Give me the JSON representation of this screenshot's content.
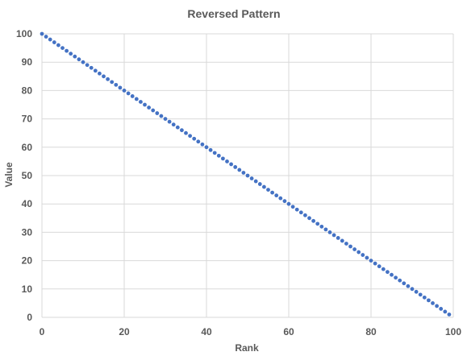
{
  "chart_data": {
    "type": "scatter",
    "title": "Reversed Pattern",
    "xlabel": "Rank",
    "ylabel": "Value",
    "xlim": [
      0,
      100
    ],
    "ylim": [
      0,
      100
    ],
    "x_ticks": [
      0,
      20,
      40,
      60,
      80,
      100
    ],
    "y_ticks": [
      0,
      10,
      20,
      30,
      40,
      50,
      60,
      70,
      80,
      90,
      100
    ],
    "grid": true,
    "legend": "none",
    "series": [
      {
        "color": "#4472C4",
        "x": [
          0,
          1,
          2,
          3,
          4,
          5,
          6,
          7,
          8,
          9,
          10,
          11,
          12,
          13,
          14,
          15,
          16,
          17,
          18,
          19,
          20,
          21,
          22,
          23,
          24,
          25,
          26,
          27,
          28,
          29,
          30,
          31,
          32,
          33,
          34,
          35,
          36,
          37,
          38,
          39,
          40,
          41,
          42,
          43,
          44,
          45,
          46,
          47,
          48,
          49,
          50,
          51,
          52,
          53,
          54,
          55,
          56,
          57,
          58,
          59,
          60,
          61,
          62,
          63,
          64,
          65,
          66,
          67,
          68,
          69,
          70,
          71,
          72,
          73,
          74,
          75,
          76,
          77,
          78,
          79,
          80,
          81,
          82,
          83,
          84,
          85,
          86,
          87,
          88,
          89,
          90,
          91,
          92,
          93,
          94,
          95,
          96,
          97,
          98,
          99
        ],
        "y": [
          100,
          99,
          98,
          97,
          96,
          95,
          94,
          93,
          92,
          91,
          90,
          89,
          88,
          87,
          86,
          85,
          84,
          83,
          82,
          81,
          80,
          79,
          78,
          77,
          76,
          75,
          74,
          73,
          72,
          71,
          70,
          69,
          68,
          67,
          66,
          65,
          64,
          63,
          62,
          61,
          60,
          59,
          58,
          57,
          56,
          55,
          54,
          53,
          52,
          51,
          50,
          49,
          48,
          47,
          46,
          45,
          44,
          43,
          42,
          41,
          40,
          39,
          38,
          37,
          36,
          35,
          34,
          33,
          32,
          31,
          30,
          29,
          28,
          27,
          26,
          25,
          24,
          23,
          22,
          21,
          20,
          19,
          18,
          17,
          16,
          15,
          14,
          13,
          12,
          11,
          10,
          9,
          8,
          7,
          6,
          5,
          4,
          3,
          2,
          1
        ]
      }
    ]
  }
}
